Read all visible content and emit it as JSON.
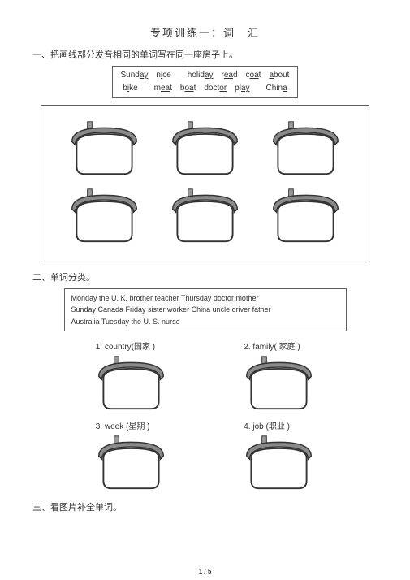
{
  "title": "专项训练一：词　汇",
  "section1": {
    "heading": "一、把画线部分发音相同的单词写在同一座房子上。",
    "words_line1_html": "Sund<span class='u'>ay</span>　n<span class='u'>i</span>ce　　holid<span class='u'>ay</span>　r<span class='u'>ea</span>d　c<span class='u'>oa</span>t　<span class='u'>a</span>bout",
    "words_line2_html": "b<span class='u'>i</span>ke　　m<span class='u'>ea</span>t　b<span class='u'>oa</span>t　doct<span class='u'>or</span>　pl<span class='u'>ay</span>　　Chin<span class='u'>a</span>",
    "house_count": 6
  },
  "section2": {
    "heading": "二、单词分类。",
    "words_line1": "Monday the U. K. brother teacher Thursday doctor mother",
    "words_line2": "Sunday Canada Friday sister worker China uncle driver father",
    "words_line3": "Australia Tuesday the U. S. nurse",
    "categories": [
      {
        "label": "1. country(国家 )"
      },
      {
        "label": "2. family( 家庭 )"
      },
      {
        "label": "3. week (星期 )"
      },
      {
        "label": "4. job (职业 )"
      }
    ]
  },
  "section3": {
    "heading": "三、看图片补全单词。"
  },
  "pagenum": "1 / 5",
  "house_svg": {
    "roof_fill": "#8a8a8a",
    "roof_stroke": "#333333",
    "wall_stroke": "#333333",
    "wall_fill": "#ffffff",
    "chimney_fill": "#9a9a9a",
    "width": 95,
    "height": 72
  }
}
